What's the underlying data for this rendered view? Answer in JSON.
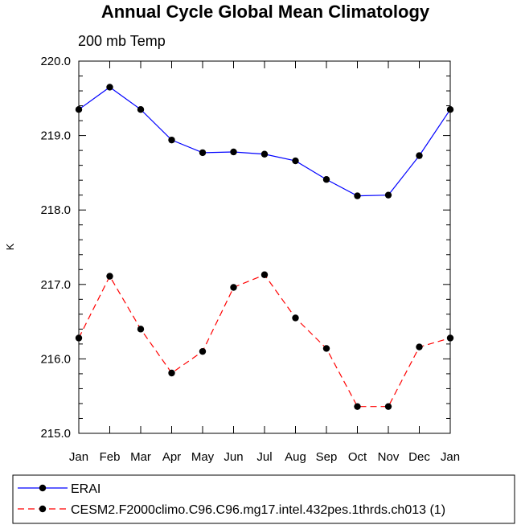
{
  "chart_data": {
    "type": "line",
    "title": "Annual Cycle Global Mean Climatology",
    "subtitle": "200 mb Temp",
    "xlabel": "",
    "ylabel": "K",
    "categories": [
      "Jan",
      "Feb",
      "Mar",
      "Apr",
      "May",
      "Jun",
      "Jul",
      "Aug",
      "Sep",
      "Oct",
      "Nov",
      "Dec",
      "Jan"
    ],
    "ylim": [
      215.0,
      220.0
    ],
    "yticks": [
      "215.0",
      "216.0",
      "217.0",
      "218.0",
      "219.0",
      "220.0"
    ],
    "grid": false,
    "legend_position": "bottom",
    "series": [
      {
        "name": "ERAI",
        "color": "#0000ff",
        "line_style": "solid",
        "values": [
          219.35,
          219.65,
          219.35,
          218.94,
          218.77,
          218.78,
          218.75,
          218.66,
          218.41,
          218.19,
          218.2,
          218.73,
          219.35
        ]
      },
      {
        "name": "CESM2.F2000climo.C96.C96.mg17.intel.432pes.1thrds.ch013 (1)",
        "color": "#ff0000",
        "line_style": "dashed",
        "values": [
          216.28,
          217.11,
          216.4,
          215.81,
          216.1,
          216.96,
          217.13,
          216.55,
          216.14,
          215.36,
          215.36,
          216.16,
          216.28
        ]
      }
    ]
  }
}
